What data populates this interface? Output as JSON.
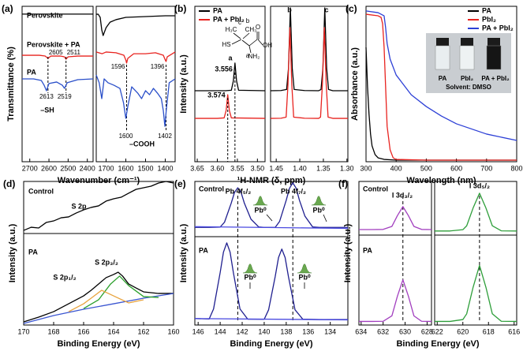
{
  "chart_data": [
    {
      "type": "line",
      "title": "(a)",
      "xlabel": "Wavenumber (cm⁻¹)",
      "ylabel": "Transmittance (%)",
      "xlim": [
        2740,
        1350
      ],
      "xbreak": [
        2370,
        1750
      ],
      "xticks": [
        2700,
        2600,
        2500,
        2400,
        1700,
        1600,
        1500,
        1400
      ],
      "ylim": [
        0,
        100
      ],
      "annotations": [
        "–SH",
        "–COOH"
      ],
      "series": [
        {
          "name": "Perovskite",
          "color": "#000000",
          "x": [
            2740,
            2370,
            2000,
            1750,
            1740,
            1730,
            1722,
            1715,
            1700,
            1680,
            1650,
            1600,
            1500,
            1400,
            1350
          ],
          "values": [
            95,
            95,
            null,
            94.9,
            94.9,
            92.9,
            84.8,
            81.2,
            86.3,
            89.8,
            91.4,
            92.9,
            93.4,
            93.9,
            93.9
          ]
        },
        {
          "name": "Perovskite + PA",
          "color": "#e8231f",
          "peaks": [
            2605,
            2511,
            1596,
            1396
          ],
          "x": [
            2740,
            2650,
            2620,
            2605,
            2590,
            2540,
            2520,
            2511,
            2500,
            2450,
            2370,
            2000,
            1750,
            1720,
            1700,
            1650,
            1610,
            1600,
            1596,
            1590,
            1560,
            1500,
            1450,
            1410,
            1400,
            1396,
            1390,
            1350
          ],
          "values": [
            68.5,
            68.5,
            68,
            66.5,
            68,
            68,
            67.5,
            66,
            67.5,
            68,
            68,
            null,
            70.6,
            69.5,
            70.6,
            70.1,
            68.5,
            65.5,
            63.5,
            66.5,
            69.5,
            69.5,
            70.1,
            68.5,
            65.5,
            64.5,
            67.5,
            70.6
          ]
        },
        {
          "name": "PA",
          "color": "#2a4fc9",
          "peaks": [
            2613,
            2519,
            1600,
            1402
          ],
          "x": [
            2740,
            2680,
            2640,
            2625,
            2613,
            2600,
            2560,
            2530,
            2519,
            2505,
            2450,
            2370,
            2000,
            1750,
            1735,
            1722,
            1710,
            1690,
            1660,
            1630,
            1612,
            1600,
            1590,
            1570,
            1540,
            1520,
            1500,
            1480,
            1460,
            1440,
            1420,
            1410,
            1402,
            1395,
            1380,
            1350
          ],
          "values": [
            53.3,
            53.3,
            52.3,
            49.2,
            45.7,
            50.3,
            51.3,
            49.2,
            47.2,
            50.8,
            52.8,
            53.3,
            null,
            55.8,
            50.8,
            40.6,
            53.3,
            50.8,
            49.2,
            47.2,
            38.1,
            27.9,
            35.5,
            48.2,
            44.2,
            40.6,
            45.7,
            43.1,
            47.2,
            44.2,
            40.6,
            33,
            22.8,
            33,
            50.8,
            53.3
          ]
        }
      ]
    },
    {
      "type": "line",
      "title": "(b)",
      "xlabel": "¹H-NMR (δ, ppm)",
      "ylabel": "Intensity (a.u.)",
      "xlim": [
        3.656,
        1.298
      ],
      "xbreak": [
        3.481,
        1.462
      ],
      "xticks": [
        3.65,
        {
          "value": 3.6,
          "label": "3.60"
        },
        3.55,
        {
          "value": 3.5,
          "label": "3.50"
        },
        1.45,
        {
          "value": 1.4,
          "label": "1.40"
        },
        1.35,
        {
          "value": 1.3,
          "label": "1.30"
        }
      ],
      "ylim": [
        0,
        100
      ],
      "legend": "upper left",
      "shifts": [
        3.556,
        3.574
      ],
      "annotations": [
        "a",
        "b",
        "c"
      ],
      "structure": [
        "H₃C",
        "CH₃",
        "HS",
        "O",
        "OH",
        "NH₂",
        "a",
        "b",
        "c"
      ],
      "series": [
        {
          "name": "PA",
          "color": "#000000",
          "x": [
            3.656,
            3.58,
            3.565,
            3.56,
            3.556,
            3.552,
            3.547,
            3.481,
            2.5,
            1.462,
            1.44,
            1.428,
            1.424,
            1.42,
            1.416,
            1.412,
            1.39,
            1.36,
            1.355,
            1.351,
            1.347,
            1.343,
            1.339,
            1.33,
            1.298
          ],
          "values": [
            45.7,
            45.7,
            46,
            52,
            63.5,
            52,
            46,
            45.7,
            null,
            45.7,
            45.8,
            46.5,
            60,
            99,
            60,
            46.5,
            45.8,
            45.7,
            46.5,
            60,
            99,
            60,
            46.5,
            45.7,
            45.7
          ]
        },
        {
          "name": "PA + PbI₂",
          "color": "#e8231f",
          "x": [
            3.656,
            3.6,
            3.583,
            3.578,
            3.574,
            3.57,
            3.565,
            3.481,
            2.5,
            1.462,
            1.44,
            1.429,
            1.425,
            1.421,
            1.417,
            1.413,
            1.39,
            1.36,
            1.356,
            1.352,
            1.348,
            1.344,
            1.34,
            1.33,
            1.298
          ],
          "values": [
            27.9,
            27.9,
            28.2,
            33,
            43.1,
            33,
            28.2,
            27.9,
            null,
            27.9,
            28,
            28.7,
            50,
            86.3,
            50,
            28.7,
            28,
            27.9,
            28.7,
            50,
            86.3,
            50,
            28.7,
            27.9,
            27.9
          ]
        }
      ]
    },
    {
      "type": "line",
      "title": "(c)",
      "xlabel": "Wavelength (nm)",
      "ylabel": "Absorbance (a.u.)",
      "xlim": [
        300,
        800
      ],
      "xticks": [
        300,
        400,
        500,
        600,
        700,
        800
      ],
      "ylim": [
        0,
        100
      ],
      "legend": "upper right",
      "inset_labels": [
        "PA",
        "PbI₂",
        "PA + PbI₂",
        "Solvent: DMSO"
      ],
      "series": [
        {
          "name": "PA",
          "color": "#000000",
          "x": [
            300,
            305,
            310,
            315,
            320,
            330,
            340,
            360,
            400,
            500,
            800
          ],
          "values": [
            73.6,
            48.2,
            30.5,
            17.8,
            10.2,
            4.6,
            2.5,
            1.5,
            1,
            1,
            1
          ]
        },
        {
          "name": "PbI₂",
          "color": "#e8231f",
          "x": [
            300,
            340,
            350,
            355,
            360,
            365,
            370,
            380,
            390,
            400,
            500,
            800
          ],
          "values": [
            94.9,
            93.9,
            92.9,
            88.8,
            73.6,
            48.2,
            22.8,
            7.6,
            2.5,
            1.5,
            1,
            1
          ]
        },
        {
          "name": "PA + PbI₂",
          "color": "#2c3fd6",
          "x": [
            300,
            340,
            360,
            365,
            370,
            380,
            400,
            450,
            500,
            550,
            600,
            700,
            800
          ],
          "values": [
            97,
            95.9,
            93.9,
            86.3,
            76.1,
            66,
            55.8,
            43.1,
            35.5,
            29.4,
            24.4,
            17.8,
            13.7
          ]
        }
      ]
    },
    {
      "type": "line",
      "title": "(d)",
      "xlabel": "Binding Energy (eV)",
      "ylabel": "Intensity (a.u.)",
      "xlim": [
        170,
        160
      ],
      "xticks": [
        170,
        168,
        166,
        164,
        162,
        160
      ],
      "ylim": [
        0,
        100
      ],
      "annotations": [
        "Control",
        "S 2p",
        "PA",
        "S 2p₁/₂",
        "S 2p₃/₂"
      ],
      "series": [
        {
          "color": "#000000",
          "x": [
            170,
            169.5,
            169,
            168.5,
            168,
            167.5,
            167,
            166.5,
            166,
            165.5,
            165,
            164.5,
            164,
            163.5,
            163,
            162.5,
            162,
            161.5,
            161,
            160.5,
            160
          ],
          "values": [
            65.9,
            68.1,
            67.6,
            71.4,
            72.5,
            74.7,
            75.3,
            78,
            80.2,
            81.9,
            83,
            86.3,
            87.9,
            89,
            91.8,
            94.5,
            95.6,
            96.7,
            98.9,
            100,
            98.9
          ]
        },
        {
          "color": "#000000",
          "x": [
            170,
            169,
            168,
            167,
            166,
            165.5,
            165,
            164.5,
            164,
            163.7,
            163.4,
            163,
            162.5,
            162,
            161,
            160
          ],
          "values": [
            2.2,
            5.5,
            9.3,
            14.8,
            20.3,
            24.2,
            28.6,
            33,
            35.2,
            36.8,
            34.1,
            28.6,
            25.8,
            23.1,
            22,
            22
          ]
        },
        {
          "color": "#3b56d1",
          "x": [
            170,
            168,
            166,
            164,
            162,
            160
          ],
          "values": [
            1.1,
            6.6,
            11,
            14.8,
            18.7,
            22
          ]
        },
        {
          "color": "#2ca02c",
          "x": [
            166,
            165,
            164.2,
            163.6,
            163,
            162,
            161
          ],
          "values": [
            11.5,
            17.6,
            28.6,
            34.1,
            27.5,
            19.8,
            19.2
          ]
        },
        {
          "color": "#e8a33c",
          "x": [
            167,
            166,
            165.5,
            164.8,
            164,
            163,
            162
          ],
          "values": [
            9.3,
            14.8,
            18.7,
            24.2,
            20.3,
            15.4,
            17.6
          ]
        }
      ]
    },
    {
      "type": "line",
      "title": "(e)",
      "xlabel": "Binding Energy (eV)",
      "ylabel": "Intensity (a.u.)",
      "xlim": [
        146.3,
        132.4
      ],
      "xticks": [
        146,
        144,
        142,
        140,
        138,
        136,
        134
      ],
      "ylim": [
        0,
        100
      ],
      "annotations": [
        "Control",
        "Pb 4f₅/₂",
        "Pb 4f₇/₂",
        "Pb⁰",
        "Pb⁰",
        "PA",
        "Pb⁰",
        "Pb⁰"
      ],
      "ref_lines": [
        142.4,
        137.4
      ],
      "series": [
        {
          "color": "#1f1f8f",
          "x": [
            146.3,
            145,
            144,
            143.6,
            143,
            142.7,
            142.4,
            142.1,
            141.8,
            141.2,
            140.5,
            140,
            139,
            138.6,
            138,
            137.7,
            137.4,
            137.1,
            136.8,
            136.3,
            135.6,
            135,
            134,
            132.4
          ],
          "values": [
            68,
            68,
            68.2,
            71.7,
            84.8,
            92.3,
            95.6,
            92.3,
            84.8,
            73.7,
            68.3,
            68,
            68,
            72.2,
            86.9,
            95.3,
            99,
            95.3,
            86.9,
            75.8,
            68.3,
            68,
            68,
            68
          ]
        },
        {
          "color": "#1f1f8f",
          "x": [
            146.3,
            145,
            144.6,
            144,
            143.7,
            143.4,
            143.1,
            142.8,
            142.2,
            141.5,
            140,
            139.6,
            139,
            138.7,
            138.4,
            138.1,
            137.8,
            137.2,
            136.5,
            135,
            132.4
          ],
          "values": [
            4.5,
            4.2,
            11.2,
            36.5,
            50.8,
            57.2,
            50.8,
            36.5,
            11.2,
            4.1,
            4,
            10.6,
            33.8,
            47,
            52.9,
            47,
            33.8,
            10.6,
            4.1,
            3.8,
            3.8
          ]
        },
        {
          "color": "#4a4ae0",
          "x": [
            146.3,
            132.4
          ],
          "values": [
            68.5,
            67.3
          ]
        },
        {
          "color": "#4a4ae0",
          "x": [
            146.3,
            132.4
          ],
          "values": [
            4.5,
            3.6
          ]
        }
      ]
    },
    {
      "type": "line",
      "title": "(f)",
      "xlabel": "Binding Energy (eV)",
      "ylabel": "Intensity (a.u.)",
      "xlim": [
        634.2,
        615.8
      ],
      "xbreak": [
        627.6,
        622.2
      ],
      "xticks": [
        634,
        632,
        630,
        628,
        622,
        620,
        618,
        616
      ],
      "ylim": [
        0,
        100
      ],
      "annotations": [
        "Control",
        "I 3d₃/₂",
        "I 3d₅/₂",
        "PA"
      ],
      "ref_lines": [
        630.2,
        618.7
      ],
      "series": [
        {
          "color": "#a23fbf",
          "x": [
            634.2,
            633,
            632,
            631.2,
            630.7,
            630.2,
            629.7,
            629.2,
            628.5,
            627.6
          ],
          "values": [
            66.5,
            66.5,
            66.6,
            68.7,
            76.2,
            82.5,
            76.2,
            68.7,
            66.6,
            66.5
          ]
        },
        {
          "color": "#2e9e3a",
          "x": [
            622.2,
            621,
            620,
            619.7,
            619.2,
            618.7,
            618.2,
            617.7,
            617,
            615.8
          ],
          "values": [
            65.5,
            65.5,
            66.4,
            69.1,
            81.5,
            91.8,
            81.5,
            69.1,
            65.6,
            65.5
          ]
        },
        {
          "color": "#a23fbf",
          "x": [
            634.2,
            633,
            632,
            631.2,
            630.7,
            630.2,
            629.7,
            629.2,
            628.5,
            627.6
          ],
          "values": [
            2.5,
            2.5,
            2.6,
            6.4,
            20.1,
            31.5,
            20.1,
            6.4,
            2.6,
            2.5
          ]
        },
        {
          "color": "#2e9e3a",
          "x": [
            622.2,
            621,
            620,
            619.7,
            619.2,
            618.7,
            618.2,
            617.7,
            617,
            615.8
          ],
          "values": [
            2.5,
            2.5,
            3.8,
            7.8,
            26.3,
            41.5,
            26.3,
            7.8,
            2.6,
            2.5
          ]
        }
      ]
    }
  ]
}
